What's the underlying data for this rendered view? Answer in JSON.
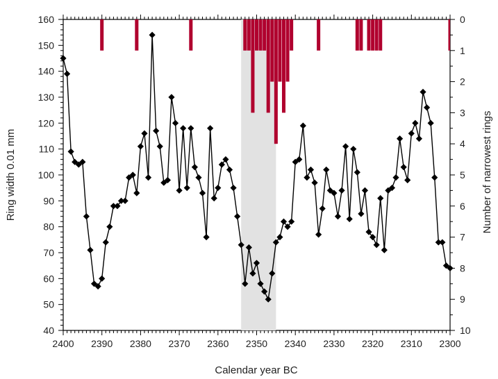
{
  "chart_data": {
    "type": "line",
    "xlabel": "Calendar year BC",
    "ylabel": "Ring width 0.01 mm",
    "y2label": "Number of narrowest rings",
    "xlim": [
      2400,
      2300
    ],
    "x_direction": "decreasing-left-to-right",
    "ylim": [
      40,
      160
    ],
    "y2lim": [
      0,
      10
    ],
    "y2_direction": "inverted",
    "x_ticks": [
      2400,
      2390,
      2380,
      2370,
      2360,
      2350,
      2340,
      2330,
      2320,
      2310,
      2300
    ],
    "y_ticks": [
      40,
      50,
      60,
      70,
      80,
      90,
      100,
      110,
      120,
      130,
      140,
      150,
      160
    ],
    "y2_ticks": [
      0,
      1,
      2,
      3,
      4,
      5,
      6,
      7,
      8,
      9,
      10
    ],
    "grid": false,
    "shaded_interval": [
      2354,
      2345
    ],
    "colors": {
      "line": "#000000",
      "bars": "#b0002e",
      "shade": "#e2e2e2"
    },
    "series": [
      {
        "type": "line",
        "marker": "diamond",
        "x": [
          2400,
          2399,
          2398,
          2397,
          2396,
          2395,
          2394,
          2393,
          2392,
          2391,
          2390,
          2389,
          2388,
          2387,
          2386,
          2385,
          2384,
          2383,
          2382,
          2381,
          2380,
          2379,
          2378,
          2377,
          2376,
          2375,
          2374,
          2373,
          2372,
          2371,
          2370,
          2369,
          2368,
          2367,
          2366,
          2365,
          2364,
          2363,
          2362,
          2361,
          2360,
          2359,
          2358,
          2357,
          2356,
          2355,
          2354,
          2353,
          2352,
          2351,
          2350,
          2349,
          2348,
          2347,
          2346,
          2345,
          2344,
          2343,
          2342,
          2341,
          2340,
          2339,
          2338,
          2337,
          2336,
          2335,
          2334,
          2333,
          2332,
          2331,
          2330,
          2329,
          2328,
          2327,
          2326,
          2325,
          2324,
          2323,
          2322,
          2321,
          2320,
          2319,
          2318,
          2317,
          2316,
          2315,
          2314,
          2313,
          2312,
          2311,
          2310,
          2309,
          2308,
          2307,
          2306,
          2305,
          2304,
          2303,
          2302,
          2301,
          2300
        ],
        "y": [
          145,
          139,
          109,
          105,
          104,
          105,
          84,
          71,
          58,
          57,
          60,
          74,
          80,
          88,
          88,
          90,
          90,
          99,
          100,
          93,
          111,
          116,
          99,
          154,
          117,
          111,
          97,
          98,
          130,
          120,
          94,
          118,
          95,
          118,
          103,
          99,
          93,
          76,
          118,
          91,
          95,
          104,
          106,
          102,
          95,
          84,
          73,
          58,
          72,
          62,
          66,
          58,
          55,
          52,
          62,
          74,
          76,
          82,
          80,
          82,
          105,
          106,
          119,
          99,
          102,
          97,
          77,
          87,
          102,
          94,
          93,
          84,
          94,
          111,
          83,
          110,
          101,
          85,
          94,
          78,
          76,
          73,
          91,
          71,
          94,
          95,
          99,
          114,
          103,
          98,
          116,
          120,
          114,
          132,
          126,
          120,
          99,
          74,
          74,
          65,
          64
        ]
      },
      {
        "type": "bar",
        "axis": "right",
        "x": [
          2390,
          2381,
          2367,
          2353,
          2352,
          2351,
          2350,
          2349,
          2348,
          2347,
          2346,
          2345,
          2344,
          2343,
          2342,
          2341,
          2334,
          2324,
          2323,
          2321,
          2320,
          2319,
          2318,
          2300
        ],
        "values": [
          1,
          1,
          1,
          1,
          1,
          3,
          1,
          1,
          1,
          3,
          2,
          4,
          2,
          3,
          2,
          1,
          1,
          1,
          1,
          1,
          1,
          1,
          1,
          1
        ]
      }
    ]
  }
}
